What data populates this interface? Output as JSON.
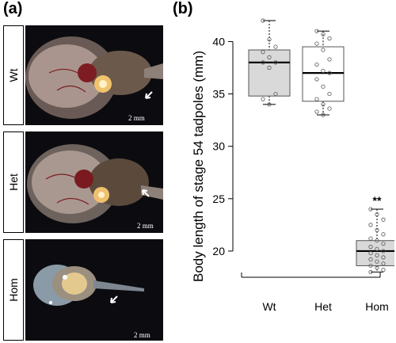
{
  "figure": {
    "panel_a_label": "(a)",
    "panel_b_label": "(b)"
  },
  "photos": [
    {
      "genotype": "Wt",
      "scale": "2 mm"
    },
    {
      "genotype": "Het",
      "scale": "2 mm"
    },
    {
      "genotype": "Hom",
      "scale": "2 mm"
    }
  ],
  "chart_data": {
    "type": "box",
    "ylabel": "Body length of stage 54 tadpoles (mm)",
    "xlabel": "",
    "categories": [
      "Wt",
      "Het",
      "Hom"
    ],
    "ylim": [
      17.5,
      42
    ],
    "yticks": [
      20,
      25,
      30,
      35,
      40
    ],
    "boxes": [
      {
        "name": "Wt",
        "min": 34.0,
        "q1": 34.8,
        "median": 38.0,
        "q3": 39.2,
        "max": 42.0,
        "points": [
          42.0,
          40.2,
          39.5,
          39.0,
          38.5,
          38.0,
          38.0,
          37.5,
          35.0,
          34.5,
          34.0
        ],
        "annotation": ""
      },
      {
        "name": "Het",
        "min": 33.0,
        "q1": 34.3,
        "median": 37.0,
        "q3": 39.5,
        "max": 41.0,
        "points": [
          41.0,
          40.7,
          40.3,
          39.8,
          39.2,
          38.3,
          37.8,
          37.2,
          37.0,
          36.4,
          35.7,
          35.0,
          34.5,
          34.0,
          33.6,
          33.3,
          33.0
        ],
        "annotation": ""
      },
      {
        "name": "Hom",
        "min": 18.0,
        "q1": 18.6,
        "median": 20.0,
        "q3": 21.0,
        "max": 24.0,
        "points": [
          24.0,
          23.5,
          23.0,
          22.5,
          22.0,
          21.6,
          21.2,
          21.0,
          20.7,
          20.4,
          20.2,
          20.0,
          19.8,
          19.6,
          19.4,
          19.2,
          19.0,
          18.8,
          18.6,
          18.4,
          18.2,
          18.0
        ],
        "annotation": "**"
      }
    ],
    "box_fill": "#d9d9d9",
    "box_fill_het": "#ffffff",
    "point_color": "#555555",
    "grid": false
  }
}
